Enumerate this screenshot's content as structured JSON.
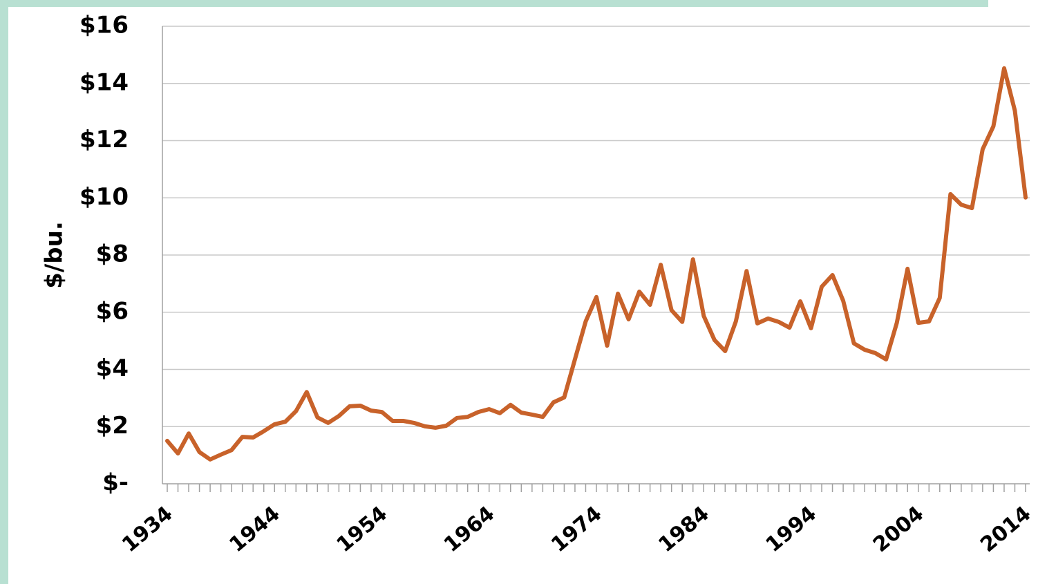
{
  "chart_data": {
    "type": "line",
    "y_label": "$/bu.",
    "x": [
      1934,
      1935,
      1936,
      1937,
      1938,
      1939,
      1940,
      1941,
      1942,
      1943,
      1944,
      1945,
      1946,
      1947,
      1948,
      1949,
      1950,
      1951,
      1952,
      1953,
      1954,
      1955,
      1956,
      1957,
      1958,
      1959,
      1960,
      1961,
      1962,
      1963,
      1964,
      1965,
      1966,
      1967,
      1968,
      1969,
      1970,
      1971,
      1972,
      1973,
      1974,
      1975,
      1976,
      1977,
      1978,
      1979,
      1980,
      1981,
      1982,
      1983,
      1984,
      1985,
      1986,
      1987,
      1988,
      1989,
      1990,
      1991,
      1992,
      1993,
      1994,
      1995,
      1996,
      1997,
      1998,
      1999,
      2000,
      2001,
      2002,
      2003,
      2004,
      2005,
      2006,
      2007,
      2008,
      2009,
      2010,
      2011,
      2012,
      2013,
      2014
    ],
    "series": [
      {
        "color": "#c8622a",
        "values": [
          1.5,
          1.06,
          1.76,
          1.11,
          0.85,
          1.02,
          1.18,
          1.64,
          1.62,
          1.84,
          2.08,
          2.17,
          2.54,
          3.21,
          2.32,
          2.13,
          2.37,
          2.71,
          2.73,
          2.56,
          2.51,
          2.2,
          2.2,
          2.13,
          2.01,
          1.96,
          2.03,
          2.3,
          2.34,
          2.51,
          2.61,
          2.47,
          2.76,
          2.49,
          2.42,
          2.34,
          2.85,
          3.02,
          4.35,
          5.68,
          6.53,
          4.83,
          6.65,
          5.75,
          6.72,
          6.26,
          7.66,
          6.07,
          5.66,
          7.85,
          5.87,
          5.03,
          4.64,
          5.68,
          7.44,
          5.61,
          5.78,
          5.66,
          5.46,
          6.38,
          5.44,
          6.89,
          7.3,
          6.4,
          4.91,
          4.69,
          4.57,
          4.35,
          5.63,
          7.52,
          5.63,
          5.68,
          6.5,
          10.13,
          9.76,
          9.64,
          11.7,
          12.5,
          14.53,
          13.05,
          10.01
        ]
      }
    ],
    "xlim": [
      1934,
      2014
    ],
    "xticks": [
      1934,
      1944,
      1954,
      1964,
      1974,
      1984,
      1994,
      2004,
      2014
    ],
    "ylim": [
      0,
      16
    ],
    "yticks": [
      {
        "value": 0,
        "label": "$-"
      },
      {
        "value": 2,
        "label": "$2"
      },
      {
        "value": 4,
        "label": "$4"
      },
      {
        "value": 6,
        "label": "$6"
      },
      {
        "value": 8,
        "label": "$8"
      },
      {
        "value": 10,
        "label": "$10"
      },
      {
        "value": 12,
        "label": "$12"
      },
      {
        "value": 14,
        "label": "$14"
      },
      {
        "value": 16,
        "label": "$16"
      }
    ],
    "grid": true
  }
}
